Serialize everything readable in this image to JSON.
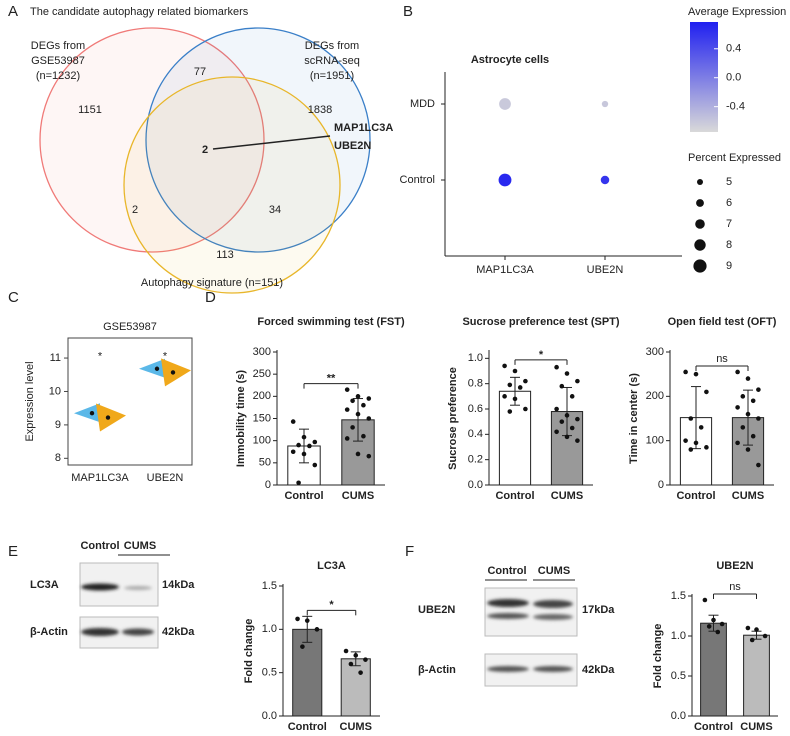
{
  "venn": {
    "letter": "A",
    "title": "The candidate autophagy related biomarkers",
    "sets": [
      {
        "lines": [
          "DEGs from",
          "GSE53987",
          "(n=1232)"
        ],
        "color": "#f07a78"
      },
      {
        "lines": [
          "DEGs from",
          "scRNA-seq",
          "(n=1951)"
        ],
        "color": "#3a7fc8"
      },
      {
        "lines": [
          "Autophagy signature (n=151)"
        ],
        "color": "#e8b62a"
      }
    ],
    "regions": [
      1151,
      77,
      1838,
      2,
      2,
      34,
      113
    ],
    "callout": [
      "MAP1LC3A",
      "UBE2N"
    ],
    "callout_color": "#c0392b"
  },
  "dotplot": {
    "letter": "B",
    "title": "Astrocyte cells",
    "rows": [
      "MDD",
      "Control"
    ],
    "columns": [
      "MAP1LC3A",
      "UBE2N"
    ],
    "average_expression": [
      [
        -0.62,
        -0.6
      ],
      [
        0.7,
        0.6
      ]
    ],
    "percent_expressed": [
      [
        8.2,
        5.2
      ],
      [
        8.8,
        6.4
      ]
    ],
    "color_legend": {
      "title": "Average Expression",
      "lim": [
        -0.75,
        0.77
      ],
      "ticks": [
        0.4,
        {
          "value": 0,
          "label": "0.0"
        },
        -0.4
      ],
      "colors": [
        "#d9d9d9",
        "#2020f0"
      ]
    },
    "size_legend": {
      "title": "Percent Expressed",
      "ticks": [
        5,
        6,
        7,
        8,
        9
      ]
    }
  },
  "violin": {
    "letter": "C",
    "title": "GSE53987",
    "ylabel": "Expression level",
    "ylim": [
      7.8,
      11.6
    ],
    "yticks": [
      8,
      9,
      10,
      11
    ],
    "categories": [
      "MAP1LC3A",
      "UBE2N"
    ],
    "series": [
      {
        "color": "#5bb8e8",
        "values": [
          9.35,
          10.68
        ]
      },
      {
        "color": "#f0a81a",
        "values": [
          9.22,
          10.57
        ]
      }
    ],
    "significance": [
      "*",
      "*"
    ]
  },
  "behavior": {
    "letter": "D",
    "charts": [
      {
        "title": "Forced swimming test (FST)",
        "ylabel": "Immobility time (s)",
        "ylim": [
          0,
          300
        ],
        "yticks": [
          0,
          50,
          100,
          150,
          200,
          250,
          300
        ],
        "categories": [
          "Control",
          "CUMS"
        ],
        "values": [
          88,
          147
        ],
        "errors": [
          38,
          48
        ],
        "colors": [
          "#ffffff",
          "#999999"
        ],
        "points": [
          [
            143,
            108,
            97,
            90,
            88,
            75,
            70,
            45,
            5
          ],
          [
            215,
            200,
            195,
            190,
            180,
            170,
            160,
            150,
            130,
            110,
            105,
            70,
            65
          ]
        ],
        "significance": "**"
      },
      {
        "title": "Sucrose preference test (SPT)",
        "ylabel": "Sucrose preference",
        "ylim": [
          0,
          1.05
        ],
        "yticks": [
          {
            "value": 0,
            "label": "0.0"
          },
          0.2,
          0.4,
          0.6,
          0.8,
          {
            "value": 1,
            "label": "1.0"
          }
        ],
        "categories": [
          "Control",
          "CUMS"
        ],
        "values": [
          0.74,
          0.58
        ],
        "errors": [
          0.11,
          0.19
        ],
        "colors": [
          "#ffffff",
          "#999999"
        ],
        "points": [
          [
            0.94,
            0.9,
            0.82,
            0.79,
            0.77,
            0.7,
            0.68,
            0.6,
            0.58
          ],
          [
            0.93,
            0.88,
            0.82,
            0.78,
            0.7,
            0.6,
            0.55,
            0.52,
            0.5,
            0.45,
            0.42,
            0.38,
            0.35
          ]
        ],
        "significance": "*"
      },
      {
        "title": "Open field test (OFT)",
        "ylabel": "Time in center (s)",
        "ylim": [
          0,
          300
        ],
        "yticks": [
          0,
          100,
          200,
          300
        ],
        "categories": [
          "Control",
          "CUMS"
        ],
        "values": [
          152,
          152
        ],
        "errors": [
          70,
          62
        ],
        "colors": [
          "#ffffff",
          "#999999"
        ],
        "points": [
          [
            255,
            250,
            210,
            150,
            130,
            100,
            95,
            85,
            80
          ],
          [
            255,
            240,
            215,
            200,
            190,
            175,
            160,
            150,
            130,
            110,
            95,
            80,
            45
          ]
        ],
        "significance": "ns"
      }
    ]
  },
  "western": [
    {
      "letter": "E",
      "lanes": [
        "Control",
        "CUMS"
      ],
      "bands": [
        "LC3A",
        "β-Actin"
      ],
      "sizes": [
        "14kDa",
        "42kDa"
      ],
      "chart": {
        "title": "LC3A",
        "ylabel": "Fold change",
        "ylim": [
          0,
          1.5
        ],
        "yticks": [
          {
            "value": 0,
            "label": "0.0"
          },
          0.5,
          {
            "value": 1,
            "label": "1.0"
          },
          1.5
        ],
        "categories": [
          "Control",
          "CUMS"
        ],
        "values": [
          1.0,
          0.66
        ],
        "errors": [
          0.15,
          0.08
        ],
        "colors": [
          "#777777",
          "#bbbbbb"
        ],
        "points": [
          [
            1.12,
            1.1,
            1.0,
            0.8
          ],
          [
            0.75,
            0.7,
            0.65,
            0.6,
            0.5
          ]
        ],
        "significance": "*"
      }
    },
    {
      "letter": "F",
      "lanes": [
        "Control",
        "CUMS"
      ],
      "bands": [
        "UBE2N",
        "β-Actin"
      ],
      "sizes": [
        "17kDa",
        "42kDa"
      ],
      "chart": {
        "title": "UBE2N",
        "ylabel": "Fold change",
        "ylim": [
          0,
          1.5
        ],
        "yticks": [
          {
            "value": 0,
            "label": "0.0"
          },
          0.5,
          {
            "value": 1,
            "label": "1.0"
          },
          1.5
        ],
        "categories": [
          "Control",
          "CUMS"
        ],
        "values": [
          1.16,
          1.01
        ],
        "errors": [
          0.1,
          0.05
        ],
        "colors": [
          "#777777",
          "#bbbbbb"
        ],
        "points": [
          [
            1.45,
            1.2,
            1.15,
            1.12,
            1.05
          ],
          [
            1.1,
            1.08,
            1.0,
            0.95
          ]
        ],
        "significance": "ns"
      }
    }
  ]
}
